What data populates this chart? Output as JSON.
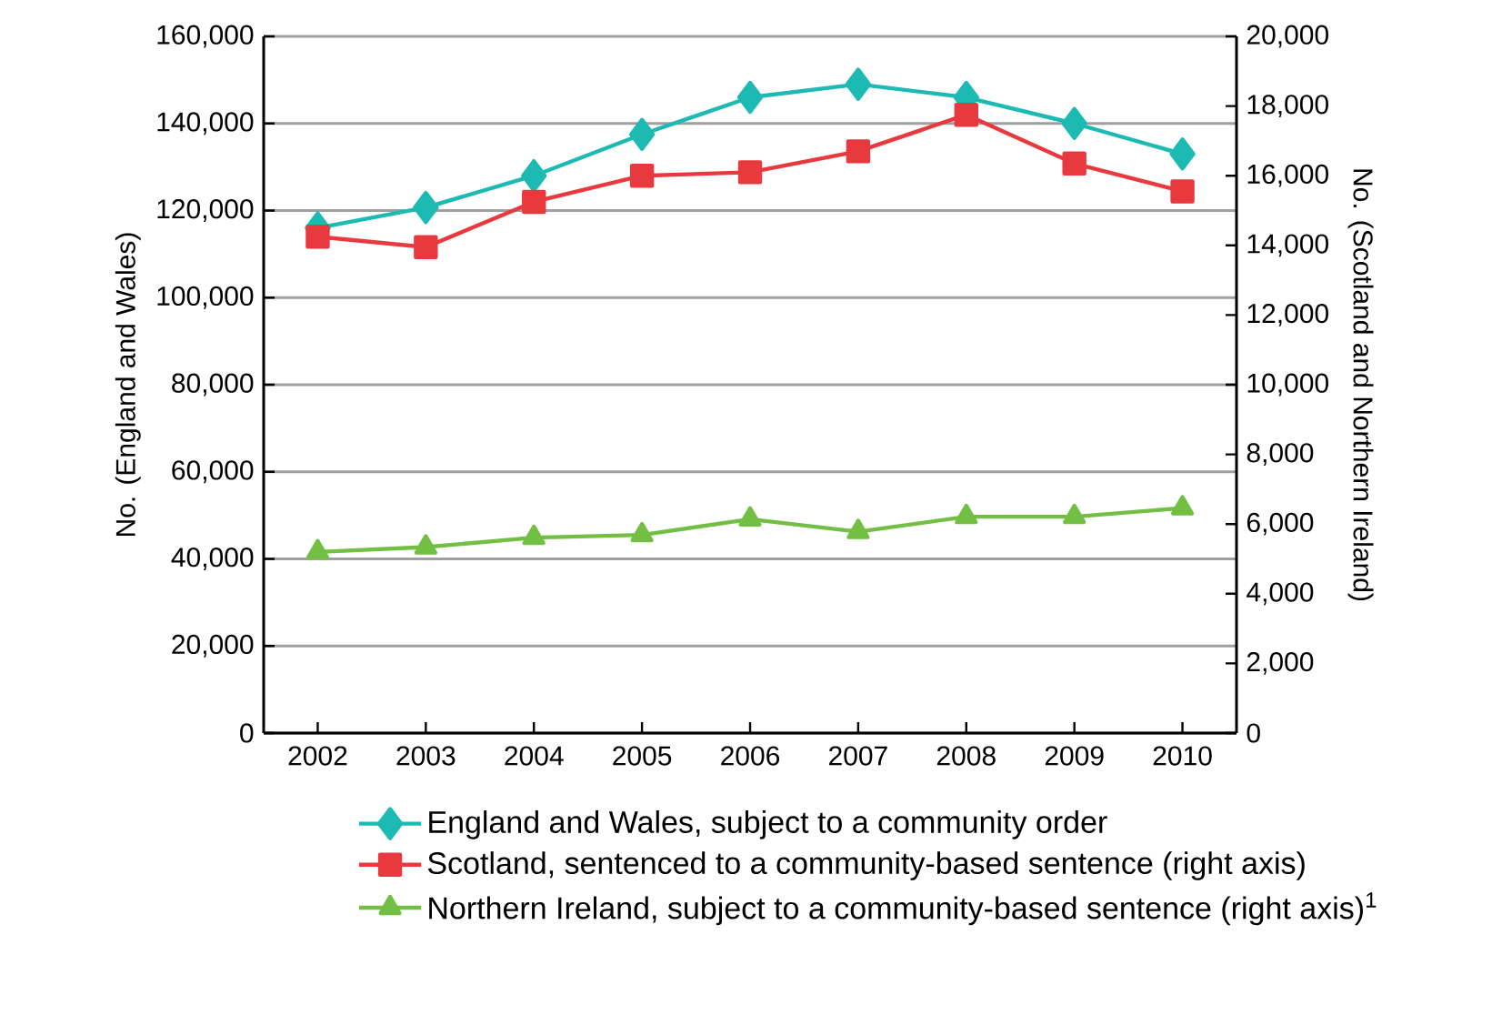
{
  "chart_data": {
    "type": "line",
    "ylabel": "No. (England and Wales)",
    "y2label": "No. (Scotland and Northern Ireland)",
    "categories": [
      "2002",
      "2003",
      "2004",
      "2005",
      "2006",
      "2007",
      "2008",
      "2009",
      "2010"
    ],
    "series": [
      {
        "name": "England and Wales, subject to a community order",
        "color": "#1dbab4",
        "marker": "diamond",
        "values": [
          116000,
          120700,
          128000,
          137500,
          146000,
          149000,
          146000,
          140000,
          133000
        ]
      },
      {
        "name": "Scotland, sentenced to a community-based sentence (right axis)",
        "color": "#e8393f",
        "marker": "square",
        "axis": "y2",
        "values": [
          14250,
          13950,
          15250,
          16000,
          16100,
          16700,
          17750,
          16350,
          15550
        ]
      },
      {
        "name": "Northern Ireland, subject to a community-based sentence (right axis)$^{1}$",
        "color": "#72bf44",
        "marker": "triangle",
        "axis": "y2",
        "values": [
          5200,
          5340,
          5610,
          5690,
          6140,
          5780,
          6210,
          6210,
          6460
        ]
      }
    ],
    "ylim": [
      0,
      160000
    ],
    "yticks": [
      {
        "value": 0,
        "label": "0"
      },
      {
        "value": 20000,
        "label": "20,000"
      },
      {
        "value": 40000,
        "label": "40,000"
      },
      {
        "value": 60000,
        "label": "60,000"
      },
      {
        "value": 80000,
        "label": "80,000"
      },
      {
        "value": 100000,
        "label": "100,000"
      },
      {
        "value": 120000,
        "label": "120,000"
      },
      {
        "value": 140000,
        "label": "140,000"
      },
      {
        "value": 160000,
        "label": "160,000"
      }
    ],
    "y2lim": [
      0,
      20000
    ],
    "y2ticks": [
      {
        "value": 0,
        "label": "0"
      },
      {
        "value": 2000,
        "label": "2,000"
      },
      {
        "value": 4000,
        "label": "4,000"
      },
      {
        "value": 6000,
        "label": "6,000"
      },
      {
        "value": 8000,
        "label": "8,000"
      },
      {
        "value": 10000,
        "label": "10,000"
      },
      {
        "value": 12000,
        "label": "12,000"
      },
      {
        "value": 14000,
        "label": "14,000"
      },
      {
        "value": 16000,
        "label": "16,000"
      },
      {
        "value": 18000,
        "label": "18,000"
      },
      {
        "value": 20000,
        "label": "20,000"
      }
    ],
    "grid": "y",
    "legend": "bottom",
    "line_style": "solid"
  }
}
